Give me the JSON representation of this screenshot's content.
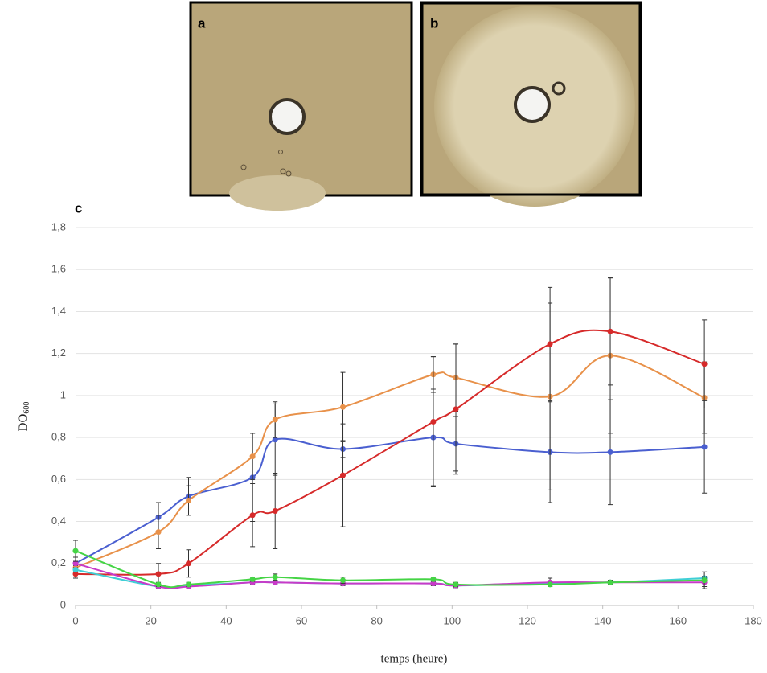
{
  "panel_labels": [
    "a",
    "b",
    "c"
  ],
  "chart_data": {
    "type": "line",
    "ylabel": {
      "text": "DO",
      "subscript": "600"
    },
    "xlabel": "temps (heure)",
    "x": [
      0,
      22,
      30,
      47,
      53,
      71,
      95,
      101,
      126,
      142,
      167
    ],
    "xlim": [
      0,
      180
    ],
    "xticks": [
      0,
      20,
      40,
      60,
      80,
      100,
      120,
      140,
      160,
      180
    ],
    "ylim": [
      0,
      1.8
    ],
    "yticks": [
      0,
      {
        "value": 0.2,
        "label": "0,2"
      },
      {
        "value": 0.4,
        "label": "0,4"
      },
      {
        "value": 0.6,
        "label": "0,6"
      },
      {
        "value": 0.8,
        "label": "0,8"
      },
      1,
      {
        "value": 1.2,
        "label": "1,2"
      },
      {
        "value": 1.4,
        "label": "1,4"
      },
      {
        "value": 1.6,
        "label": "1,6"
      },
      {
        "value": 1.8,
        "label": "1,8"
      }
    ],
    "grid": true,
    "series": [
      {
        "color": "#4a5fd0",
        "values": [
          0.2,
          0.42,
          0.52,
          0.61,
          0.79,
          0.745,
          0.8,
          0.77,
          0.73,
          0.73,
          0.755
        ],
        "errors": [
          0.03,
          0.07,
          0.09,
          0.21,
          0.17,
          0.04,
          0.23,
          0.13,
          0.24,
          0.25,
          0.22
        ]
      },
      {
        "color": "#e8914a",
        "values": [
          0.18,
          0.35,
          0.5,
          0.71,
          0.885,
          0.945,
          1.1,
          1.085,
          0.995,
          1.19,
          0.99
        ],
        "errors": [
          0.02,
          0.08,
          0.07,
          0.11,
          0.085,
          0.165,
          0.085,
          0.16,
          0.445,
          0.37,
          0.17
        ]
      },
      {
        "color": "#d62a2a",
        "values": [
          0.15,
          0.15,
          0.2,
          0.43,
          0.45,
          0.62,
          0.875,
          0.935,
          1.245,
          1.305,
          1.15
        ],
        "errors": [
          0.02,
          0.05,
          0.065,
          0.15,
          0.18,
          0.245,
          0.31,
          0.31,
          0.27,
          0.255,
          0.21
        ]
      },
      {
        "color": "#3fcfd6",
        "values": [
          0.17,
          0.09,
          0.095,
          0.11,
          0.11,
          0.105,
          0.105,
          0.095,
          0.105,
          0.11,
          0.13
        ],
        "errors": [
          0.01,
          0.01,
          0.01,
          0.01,
          0.01,
          0.01,
          0.01,
          0.01,
          0.01,
          0.01,
          0.01
        ]
      },
      {
        "color": "#c83ac8",
        "values": [
          0.2,
          0.09,
          0.09,
          0.11,
          0.11,
          0.105,
          0.105,
          0.095,
          0.11,
          0.11,
          0.11
        ],
        "errors": [
          0.01,
          0.01,
          0.01,
          0.01,
          0.01,
          0.01,
          0.01,
          0.01,
          0.02,
          0.01,
          0.02
        ]
      },
      {
        "color": "#45d445",
        "values": [
          0.26,
          0.1,
          0.1,
          0.125,
          0.135,
          0.12,
          0.125,
          0.1,
          0.1,
          0.11,
          0.12
        ],
        "errors": [
          0.05,
          0.01,
          0.01,
          0.01,
          0.015,
          0.015,
          0.01,
          0.01,
          0.01,
          0.01,
          0.04
        ]
      }
    ]
  }
}
